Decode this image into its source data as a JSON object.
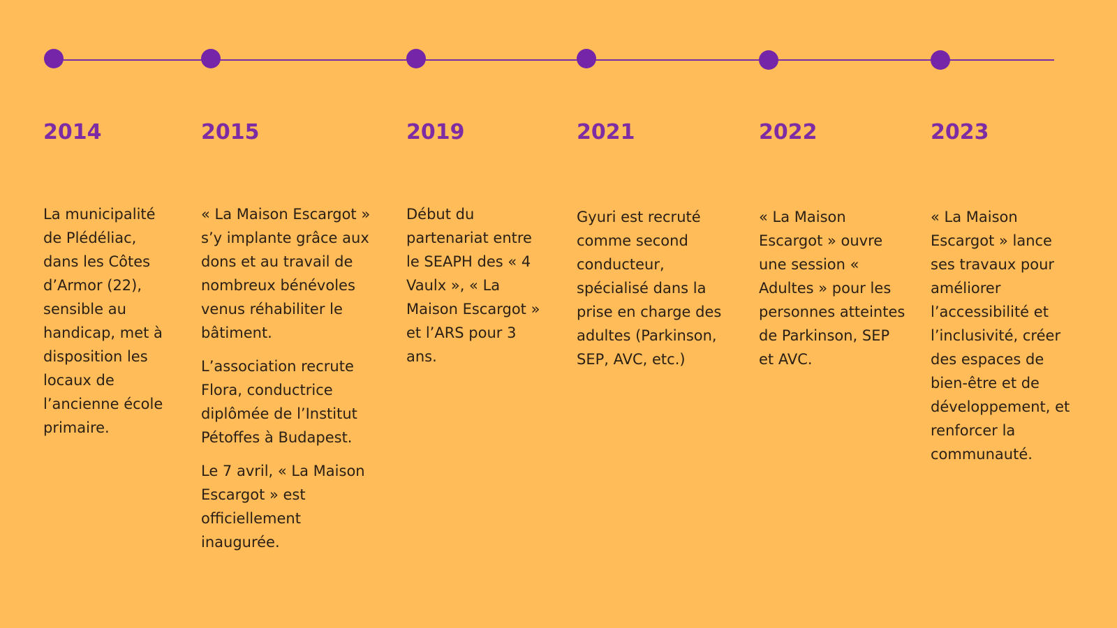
{
  "accent_color": "#7425A8",
  "background_color": "#FFBC59",
  "timeline": [
    {
      "year": "2014",
      "paragraphs": [
        "La municipalité de Plédéliac, dans les Côtes d’Armor (22), sensible au handicap, met à disposition les locaux de l’ancienne école primaire."
      ]
    },
    {
      "year": "2015",
      "paragraphs": [
        "« La Maison Escargot » s’y implante grâce aux dons et au travail de nombreux bénévoles venus réhabiliter le bâtiment.",
        "L’association recrute Flora, conductrice diplômée de l’Institut Pétoffes à Budapest.",
        "Le 7 avril, « La Maison Escargot » est officiellement inaugurée."
      ]
    },
    {
      "year": "2019",
      "paragraphs": [
        "Début du partenariat entre le SEAPH des « 4 Vaulx », « La Maison Escargot » et l’ARS pour 3 ans."
      ]
    },
    {
      "year": "2021",
      "paragraphs": [
        "Gyuri est recruté comme second conducteur, spécialisé dans la prise en charge des adultes (Parkinson, SEP, AVC, etc.)"
      ]
    },
    {
      "year": "2022",
      "paragraphs": [
        "« La Maison Escargot » ouvre une session « Adultes » pour les personnes atteintes de Parkinson, SEP et AVC."
      ]
    },
    {
      "year": "2023",
      "paragraphs": [
        "« La Maison Escargot » lance ses travaux pour améliorer l’accessibilité et l’inclusivité, créer des espaces de bien-être et de développement, et  renforcer la communauté."
      ]
    }
  ]
}
